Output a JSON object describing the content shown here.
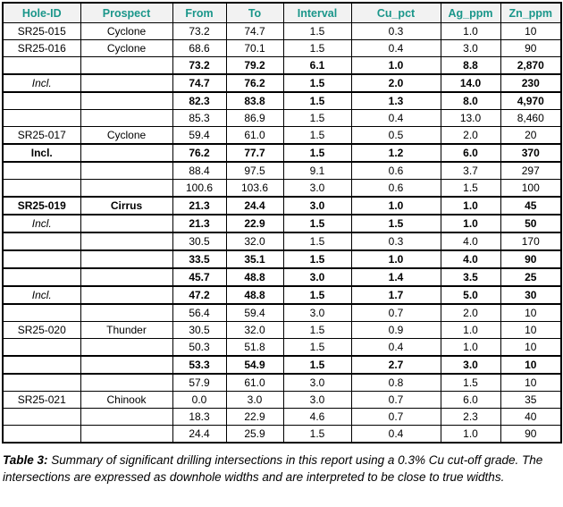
{
  "table": {
    "headers": [
      "Hole-ID",
      "Prospect",
      "From",
      "To",
      "Interval",
      "Cu_pct",
      "Ag_ppm",
      "Zn_ppm"
    ],
    "rows": [
      {
        "hole": "SR25-015",
        "hole_style": "bold",
        "prospect": "Cyclone",
        "from": "73.2",
        "to": "74.7",
        "interval": "1.5",
        "cu_pct": "0.3",
        "ag_ppm": "1.0",
        "zn_ppm": "10",
        "bold": false,
        "thick_bottom": false
      },
      {
        "hole": "SR25-016",
        "hole_style": "bold",
        "prospect": "Cyclone",
        "from": "68.6",
        "to": "70.1",
        "interval": "1.5",
        "cu_pct": "0.4",
        "ag_ppm": "3.0",
        "zn_ppm": "90",
        "bold": false,
        "thick_bottom": false
      },
      {
        "hole": "",
        "hole_style": "",
        "prospect": "",
        "from": "73.2",
        "to": "79.2",
        "interval": "6.1",
        "cu_pct": "1.0",
        "ag_ppm": "8.8",
        "zn_ppm": "2,870",
        "bold": true,
        "thick_bottom": true
      },
      {
        "hole": "Incl.",
        "hole_style": "italic",
        "prospect": "",
        "from": "74.7",
        "to": "76.2",
        "interval": "1.5",
        "cu_pct": "2.0",
        "ag_ppm": "14.0",
        "zn_ppm": "230",
        "bold": true,
        "thick_bottom": true
      },
      {
        "hole": "",
        "hole_style": "",
        "prospect": "",
        "from": "82.3",
        "to": "83.8",
        "interval": "1.5",
        "cu_pct": "1.3",
        "ag_ppm": "8.0",
        "zn_ppm": "4,970",
        "bold": true,
        "thick_bottom": false
      },
      {
        "hole": "",
        "hole_style": "",
        "prospect": "",
        "from": "85.3",
        "to": "86.9",
        "interval": "1.5",
        "cu_pct": "0.4",
        "ag_ppm": "13.0",
        "zn_ppm": "8,460",
        "bold": false,
        "thick_bottom": false
      },
      {
        "hole": "SR25-017",
        "hole_style": "bold",
        "prospect": "Cyclone",
        "from": "59.4",
        "to": "61.0",
        "interval": "1.5",
        "cu_pct": "0.5",
        "ag_ppm": "2.0",
        "zn_ppm": "20",
        "bold": false,
        "thick_bottom": true
      },
      {
        "hole": "Incl.",
        "hole_style": "bold-upright",
        "prospect": "",
        "from": "76.2",
        "to": "77.7",
        "interval": "1.5",
        "cu_pct": "1.2",
        "ag_ppm": "6.0",
        "zn_ppm": "370",
        "bold": true,
        "thick_bottom": true
      },
      {
        "hole": "",
        "hole_style": "",
        "prospect": "",
        "from": "88.4",
        "to": "97.5",
        "interval": "9.1",
        "cu_pct": "0.6",
        "ag_ppm": "3.7",
        "zn_ppm": "297",
        "bold": false,
        "thick_bottom": false
      },
      {
        "hole": "",
        "hole_style": "",
        "prospect": "",
        "from": "100.6",
        "to": "103.6",
        "interval": "3.0",
        "cu_pct": "0.6",
        "ag_ppm": "1.5",
        "zn_ppm": "100",
        "bold": false,
        "thick_bottom": true
      },
      {
        "hole": "SR25-019",
        "hole_style": "bold",
        "prospect": "Cirrus",
        "from": "21.3",
        "to": "24.4",
        "interval": "3.0",
        "cu_pct": "1.0",
        "ag_ppm": "1.0",
        "zn_ppm": "45",
        "bold": true,
        "thick_bottom": true
      },
      {
        "hole": "Incl.",
        "hole_style": "italic",
        "prospect": "",
        "from": "21.3",
        "to": "22.9",
        "interval": "1.5",
        "cu_pct": "1.5",
        "ag_ppm": "1.0",
        "zn_ppm": "50",
        "bold": true,
        "thick_bottom": true
      },
      {
        "hole": "",
        "hole_style": "",
        "prospect": "",
        "from": "30.5",
        "to": "32.0",
        "interval": "1.5",
        "cu_pct": "0.3",
        "ag_ppm": "4.0",
        "zn_ppm": "170",
        "bold": false,
        "thick_bottom": true
      },
      {
        "hole": "",
        "hole_style": "",
        "prospect": "",
        "from": "33.5",
        "to": "35.1",
        "interval": "1.5",
        "cu_pct": "1.0",
        "ag_ppm": "4.0",
        "zn_ppm": "90",
        "bold": true,
        "thick_bottom": true
      },
      {
        "hole": "",
        "hole_style": "",
        "prospect": "",
        "from": "45.7",
        "to": "48.8",
        "interval": "3.0",
        "cu_pct": "1.4",
        "ag_ppm": "3.5",
        "zn_ppm": "25",
        "bold": true,
        "thick_bottom": true
      },
      {
        "hole": "Incl.",
        "hole_style": "italic",
        "prospect": "",
        "from": "47.2",
        "to": "48.8",
        "interval": "1.5",
        "cu_pct": "1.7",
        "ag_ppm": "5.0",
        "zn_ppm": "30",
        "bold": true,
        "thick_bottom": true
      },
      {
        "hole": "",
        "hole_style": "",
        "prospect": "",
        "from": "56.4",
        "to": "59.4",
        "interval": "3.0",
        "cu_pct": "0.7",
        "ag_ppm": "2.0",
        "zn_ppm": "10",
        "bold": false,
        "thick_bottom": false
      },
      {
        "hole": "SR25-020",
        "hole_style": "bold",
        "prospect": "Thunder",
        "from": "30.5",
        "to": "32.0",
        "interval": "1.5",
        "cu_pct": "0.9",
        "ag_ppm": "1.0",
        "zn_ppm": "10",
        "bold": false,
        "thick_bottom": false
      },
      {
        "hole": "",
        "hole_style": "",
        "prospect": "",
        "from": "50.3",
        "to": "51.8",
        "interval": "1.5",
        "cu_pct": "0.4",
        "ag_ppm": "1.0",
        "zn_ppm": "10",
        "bold": false,
        "thick_bottom": true
      },
      {
        "hole": "",
        "hole_style": "",
        "prospect": "",
        "from": "53.3",
        "to": "54.9",
        "interval": "1.5",
        "cu_pct": "2.7",
        "ag_ppm": "3.0",
        "zn_ppm": "10",
        "bold": true,
        "thick_bottom": true
      },
      {
        "hole": "",
        "hole_style": "",
        "prospect": "",
        "from": "57.9",
        "to": "61.0",
        "interval": "3.0",
        "cu_pct": "0.8",
        "ag_ppm": "1.5",
        "zn_ppm": "10",
        "bold": false,
        "thick_bottom": false
      },
      {
        "hole": "SR25-021",
        "hole_style": "bold",
        "prospect": "Chinook",
        "from": "0.0",
        "to": "3.0",
        "interval": "3.0",
        "cu_pct": "0.7",
        "ag_ppm": "6.0",
        "zn_ppm": "35",
        "bold": false,
        "thick_bottom": false
      },
      {
        "hole": "",
        "hole_style": "",
        "prospect": "",
        "from": "18.3",
        "to": "22.9",
        "interval": "4.6",
        "cu_pct": "0.7",
        "ag_ppm": "2.3",
        "zn_ppm": "40",
        "bold": false,
        "thick_bottom": false
      },
      {
        "hole": "",
        "hole_style": "",
        "prospect": "",
        "from": "24.4",
        "to": "25.9",
        "interval": "1.5",
        "cu_pct": "0.4",
        "ag_ppm": "1.0",
        "zn_ppm": "90",
        "bold": false,
        "thick_bottom": false
      }
    ]
  },
  "caption": {
    "label": "Table 3:",
    "text": " Summary of significant drilling intersections in this report using a 0.3% Cu cut-off grade. The intersections are expressed as downhole widths and are interpreted to be close to true widths."
  },
  "colors": {
    "header_text": "#1A968A",
    "header_bg": "#F2F2F2",
    "border": "#000000"
  }
}
